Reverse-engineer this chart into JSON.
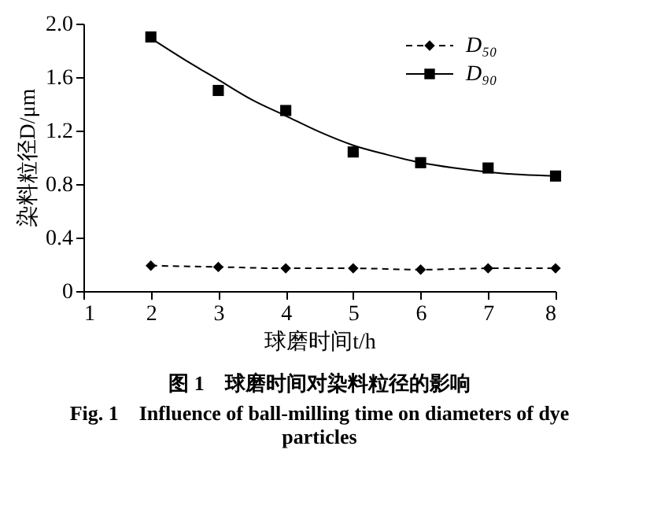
{
  "chart_data": {
    "type": "line",
    "title": "图 1　球磨时间对染料粒径的影响",
    "subtitle": "Fig. 1　Influence of ball-milling time on diameters of dye particles",
    "xlabel": "球磨时间t/h",
    "ylabel": "染料粒径D/μm",
    "xlim": [
      1,
      8
    ],
    "xticks": [
      1,
      2,
      3,
      4,
      5,
      6,
      7,
      8
    ],
    "ylim": [
      0,
      2
    ],
    "yticks": [
      0,
      0.4,
      0.8,
      1.2,
      1.6,
      {
        "value": 2,
        "label": "2.0"
      }
    ],
    "grid": false,
    "legend": "top right",
    "series": [
      {
        "name": "D₅₀",
        "type": "line",
        "marker": "diamond",
        "line_style": "dashed",
        "color": "#000000",
        "x": [
          2,
          3,
          4,
          5,
          6,
          7,
          8
        ],
        "values": [
          0.19,
          0.18,
          0.17,
          0.17,
          0.16,
          0.17,
          0.17
        ]
      },
      {
        "name": "D₉₀",
        "type": "scatter",
        "marker": "square",
        "color": "#000000",
        "x": [
          2,
          3,
          4,
          5,
          6,
          7,
          8
        ],
        "values": [
          1.9,
          1.5,
          1.35,
          1.04,
          0.96,
          0.92,
          0.86
        ]
      },
      {
        "type": "line",
        "marker": "none",
        "line_style": "solid",
        "color": "#000000",
        "x": [
          2,
          2.5,
          3,
          3.5,
          4,
          4.5,
          5,
          5.5,
          6,
          6.5,
          7,
          7.5,
          8
        ],
        "values": [
          1.89,
          1.73,
          1.58,
          1.43,
          1.31,
          1.19,
          1.09,
          1.02,
          0.96,
          0.92,
          0.89,
          0.87,
          0.86
        ]
      }
    ]
  }
}
